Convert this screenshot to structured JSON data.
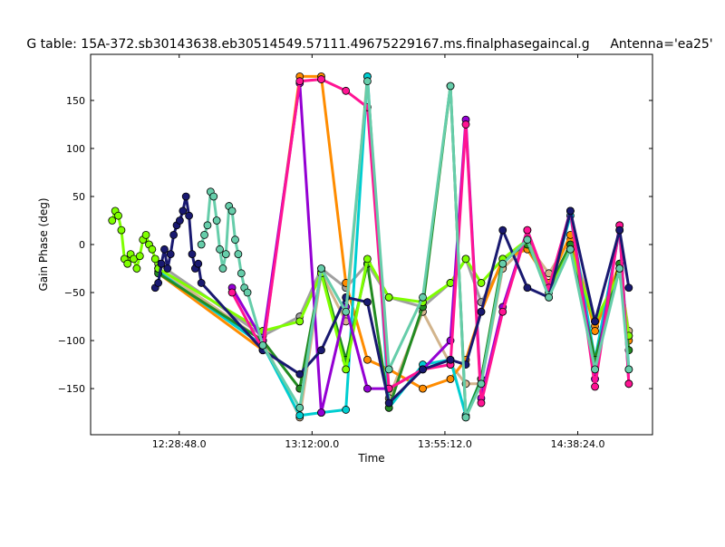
{
  "chart_data": {
    "type": "line",
    "title": "G table: 15A-372.sb30143638.eb30514549.57111.49675229167.ms.finalphasegaincal.g",
    "antenna_label": "Antenna='ea25'",
    "xlabel": "Time",
    "ylabel": "Gain Phase (deg)",
    "x_unit": "minutes since 00:00",
    "xlim": [
      720,
      902.7
    ],
    "ylim": [
      -198,
      198
    ],
    "xticks": [
      {
        "value": 748.8,
        "label": "12:28:48.0"
      },
      {
        "value": 792,
        "label": "13:12:00.0"
      },
      {
        "value": 835.2,
        "label": "13:55:12.0"
      },
      {
        "value": 878.4,
        "label": "14:38:24.0"
      }
    ],
    "yticks": [
      {
        "value": 150,
        "label": "150"
      },
      {
        "value": 100,
        "label": "100"
      },
      {
        "value": 50,
        "label": "50"
      },
      {
        "value": 0,
        "label": "0"
      },
      {
        "value": -50,
        "label": "−50"
      },
      {
        "value": -100,
        "label": "−100"
      },
      {
        "value": -150,
        "label": "−150"
      }
    ],
    "grid": false,
    "series": [
      {
        "name": "gray-a",
        "color": "#a0a0a0",
        "points": [
          [
            742,
            -20
          ],
          [
            776,
            -95
          ],
          [
            788,
            -75
          ],
          [
            795,
            -25
          ],
          [
            803,
            -45
          ],
          [
            810,
            -20
          ],
          [
            817,
            -55
          ],
          [
            828,
            -65
          ],
          [
            837,
            -40
          ],
          [
            842,
            -15
          ],
          [
            847,
            -60
          ],
          [
            854,
            -20
          ],
          [
            862,
            5
          ],
          [
            869,
            -45
          ],
          [
            876,
            -5
          ],
          [
            884,
            -85
          ],
          [
            892,
            -25
          ],
          [
            895,
            -95
          ]
        ]
      },
      {
        "name": "tan",
        "color": "#d2b48c",
        "points": [
          [
            742,
            -25
          ],
          [
            776,
            -100
          ],
          [
            788,
            -180
          ],
          [
            795,
            -30
          ],
          [
            803,
            -80
          ],
          [
            810,
            175
          ],
          [
            817,
            -160
          ],
          [
            828,
            -70
          ],
          [
            837,
            -125
          ],
          [
            842,
            -145
          ],
          [
            847,
            -145
          ],
          [
            854,
            -25
          ],
          [
            862,
            0
          ],
          [
            869,
            -30
          ],
          [
            876,
            5
          ],
          [
            884,
            -80
          ],
          [
            892,
            -30
          ],
          [
            895,
            -90
          ]
        ]
      },
      {
        "name": "orange",
        "color": "#ff8c00",
        "points": [
          [
            742,
            -30
          ],
          [
            776,
            -110
          ],
          [
            788,
            175
          ],
          [
            795,
            175
          ],
          [
            803,
            -40
          ],
          [
            810,
            -120
          ],
          [
            817,
            -130
          ],
          [
            828,
            -150
          ],
          [
            837,
            -140
          ],
          [
            842,
            -120
          ],
          [
            847,
            -70
          ],
          [
            854,
            -15
          ],
          [
            862,
            -5
          ],
          [
            869,
            -40
          ],
          [
            876,
            10
          ],
          [
            884,
            -90
          ],
          [
            892,
            -20
          ],
          [
            895,
            -100
          ]
        ]
      },
      {
        "name": "teal-a",
        "color": "#00ced1",
        "points": [
          [
            742,
            -28
          ],
          [
            776,
            -105
          ],
          [
            788,
            -178
          ],
          [
            795,
            -175
          ],
          [
            803,
            -172
          ],
          [
            810,
            175
          ],
          [
            817,
            -170
          ],
          [
            828,
            -125
          ],
          [
            837,
            -120
          ],
          [
            842,
            -178
          ],
          [
            847,
            -140
          ],
          [
            854,
            -20
          ],
          [
            862,
            5
          ],
          [
            869,
            -50
          ],
          [
            876,
            30
          ],
          [
            884,
            -120
          ],
          [
            892,
            15
          ],
          [
            895,
            -130
          ]
        ]
      },
      {
        "name": "green-dark",
        "color": "#228b22",
        "points": [
          [
            742,
            -30
          ],
          [
            776,
            -100
          ],
          [
            788,
            -150
          ],
          [
            795,
            -28
          ],
          [
            803,
            -120
          ],
          [
            810,
            -20
          ],
          [
            817,
            -170
          ],
          [
            828,
            -65
          ],
          [
            837,
            165
          ],
          [
            842,
            -180
          ],
          [
            847,
            -140
          ],
          [
            854,
            -15
          ],
          [
            862,
            0
          ],
          [
            869,
            -45
          ],
          [
            876,
            0
          ],
          [
            884,
            -120
          ],
          [
            892,
            -20
          ],
          [
            895,
            -110
          ]
        ]
      },
      {
        "name": "lime",
        "color": "#7fff00",
        "points": [
          [
            727,
            25
          ],
          [
            728,
            35
          ],
          [
            729,
            30
          ],
          [
            730,
            15
          ],
          [
            731,
            -15
          ],
          [
            732,
            -20
          ],
          [
            733,
            -10
          ],
          [
            734,
            -15
          ],
          [
            735,
            -25
          ],
          [
            736,
            -12
          ],
          [
            737,
            5
          ],
          [
            738,
            10
          ],
          [
            739,
            0
          ],
          [
            740,
            -5
          ],
          [
            741,
            -15
          ],
          [
            742,
            -25
          ],
          [
            776,
            -90
          ],
          [
            788,
            -80
          ],
          [
            795,
            -30
          ],
          [
            803,
            -130
          ],
          [
            810,
            -15
          ],
          [
            817,
            -55
          ],
          [
            828,
            -60
          ],
          [
            837,
            -40
          ],
          [
            842,
            -15
          ],
          [
            847,
            -40
          ],
          [
            854,
            -15
          ],
          [
            862,
            5
          ],
          [
            869,
            -50
          ],
          [
            876,
            -5
          ],
          [
            884,
            -80
          ],
          [
            892,
            -30
          ],
          [
            895,
            -95
          ]
        ]
      },
      {
        "name": "purple",
        "color": "#9400d3",
        "points": [
          [
            766,
            -45
          ],
          [
            776,
            -100
          ],
          [
            788,
            168
          ],
          [
            795,
            -175
          ],
          [
            803,
            -65
          ],
          [
            810,
            -150
          ],
          [
            817,
            -150
          ],
          [
            828,
            -130
          ],
          [
            837,
            -100
          ],
          [
            842,
            130
          ],
          [
            847,
            -160
          ],
          [
            854,
            -65
          ],
          [
            862,
            15
          ],
          [
            869,
            -45
          ],
          [
            876,
            35
          ],
          [
            884,
            -140
          ],
          [
            892,
            20
          ],
          [
            895,
            -145
          ]
        ]
      },
      {
        "name": "magenta",
        "color": "#ff1493",
        "points": [
          [
            766,
            -50
          ],
          [
            776,
            -110
          ],
          [
            788,
            170
          ],
          [
            795,
            172
          ],
          [
            803,
            160
          ],
          [
            810,
            143
          ],
          [
            817,
            -150
          ],
          [
            828,
            -130
          ],
          [
            837,
            -125
          ],
          [
            842,
            125
          ],
          [
            847,
            -165
          ],
          [
            854,
            -70
          ],
          [
            862,
            15
          ],
          [
            869,
            -45
          ],
          [
            876,
            35
          ],
          [
            884,
            -148
          ],
          [
            892,
            20
          ],
          [
            895,
            -145
          ]
        ]
      },
      {
        "name": "navy",
        "color": "#191970",
        "points": [
          [
            741,
            -45
          ],
          [
            742,
            -40
          ],
          [
            743,
            -20
          ],
          [
            744,
            -5
          ],
          [
            745,
            -25
          ],
          [
            746,
            -10
          ],
          [
            747,
            10
          ],
          [
            748,
            20
          ],
          [
            749,
            25
          ],
          [
            750,
            35
          ],
          [
            751,
            50
          ],
          [
            752,
            30
          ],
          [
            753,
            -10
          ],
          [
            754,
            -25
          ],
          [
            755,
            -20
          ],
          [
            756,
            -40
          ],
          [
            776,
            -110
          ],
          [
            788,
            -135
          ],
          [
            795,
            -110
          ],
          [
            803,
            -55
          ],
          [
            810,
            -60
          ],
          [
            817,
            -165
          ],
          [
            828,
            -130
          ],
          [
            837,
            -120
          ],
          [
            842,
            -125
          ],
          [
            847,
            -70
          ],
          [
            854,
            15
          ],
          [
            862,
            -45
          ],
          [
            869,
            -55
          ],
          [
            876,
            35
          ],
          [
            884,
            -80
          ],
          [
            892,
            15
          ],
          [
            895,
            -45
          ]
        ]
      },
      {
        "name": "aquamarine",
        "color": "#66cdaa",
        "points": [
          [
            756,
            0
          ],
          [
            757,
            10
          ],
          [
            758,
            20
          ],
          [
            759,
            55
          ],
          [
            760,
            50
          ],
          [
            761,
            25
          ],
          [
            762,
            -5
          ],
          [
            763,
            -25
          ],
          [
            764,
            -10
          ],
          [
            765,
            40
          ],
          [
            766,
            35
          ],
          [
            767,
            5
          ],
          [
            768,
            -10
          ],
          [
            769,
            -30
          ],
          [
            770,
            -45
          ],
          [
            771,
            -50
          ],
          [
            776,
            -105
          ],
          [
            788,
            -170
          ],
          [
            795,
            -25
          ],
          [
            803,
            -70
          ],
          [
            810,
            170
          ],
          [
            817,
            -130
          ],
          [
            828,
            -55
          ],
          [
            837,
            165
          ],
          [
            842,
            -180
          ],
          [
            847,
            -145
          ],
          [
            854,
            -20
          ],
          [
            862,
            5
          ],
          [
            869,
            -55
          ],
          [
            876,
            -5
          ],
          [
            884,
            -130
          ],
          [
            892,
            -25
          ],
          [
            895,
            -130
          ]
        ]
      }
    ]
  }
}
